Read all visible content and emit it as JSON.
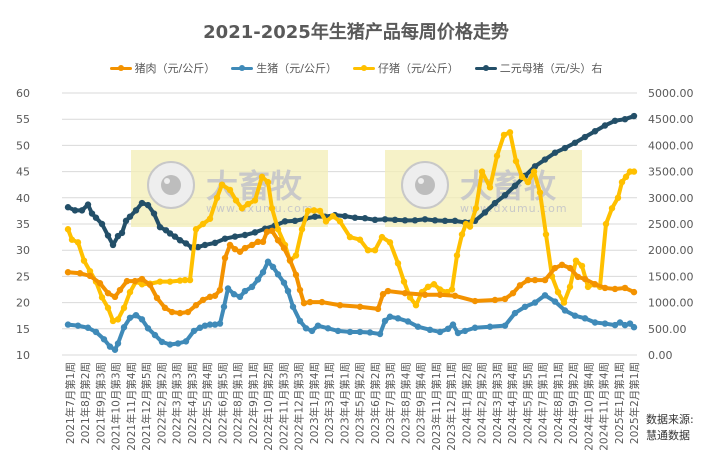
{
  "chart_data": {
    "type": "line",
    "title": "2021-2025年生猪产品每周价格走势",
    "xlabel": "",
    "ylabel": "",
    "ylim": [
      10,
      60
    ],
    "y2lim": [
      0,
      5000
    ],
    "y_ticks": [
      "10",
      "15",
      "20",
      "25",
      "30",
      "35",
      "40",
      "45",
      "50",
      "55",
      "60"
    ],
    "y2_ticks": [
      "0.00",
      "500.00",
      "1000.00",
      "1500.00",
      "2000.00",
      "2500.00",
      "3000.00",
      "3500.00",
      "4000.00",
      "4500.00",
      "5000.00"
    ],
    "grid": true,
    "legend_position": "top",
    "categories": [
      "2021年7月第1周",
      "2021年8月第2周",
      "2021年9月第3周",
      "2021年10月第3周",
      "2021年11月第4周",
      "2021年12月第5周",
      "2022年2月第2周",
      "2022年3月第3周",
      "2022年4月第3周",
      "2022年5月第4周",
      "2022年6月第5周",
      "2022年8月第1周",
      "2022年9月第1周",
      "2022年10月第2周",
      "2022年11月第3周",
      "2022年12月第3周",
      "2023年1月第4周",
      "2023年3月第1周",
      "2023年4月第1周",
      "2023年5月第2周",
      "2023年6月第2周",
      "2023年7月第3周",
      "2023年8月第4周",
      "2023年9月第4周",
      "2023年11月第1周",
      "2023年12月第1周",
      "2024年1月第2周",
      "2024年2月第2周",
      "2024年3月第3周",
      "2024年4月第4周",
      "2024年5月第5周",
      "2024年7月第1周",
      "2024年8月第1周",
      "2024年9月第2周",
      "2024年10月第4周",
      "2024年11月第4周",
      "2025年1月第1周",
      "2025年2月第1周"
    ],
    "series": [
      {
        "name": "猪肉（元/公斤）",
        "axis": "left",
        "color": "#F39200",
        "x": [
          68,
          80,
          90,
          100,
          108,
          115,
          120,
          127,
          135,
          142,
          150,
          157,
          165,
          172,
          180,
          188,
          196,
          203,
          210,
          215,
          220,
          225,
          230,
          235,
          240,
          245,
          252,
          258,
          263,
          267,
          272,
          278,
          284,
          290,
          296,
          300,
          304,
          310,
          322,
          340,
          360,
          378,
          383,
          388,
          405,
          425,
          440,
          455,
          475,
          495,
          505,
          513,
          520,
          528,
          535,
          545,
          555,
          562,
          570,
          578,
          585,
          595,
          605,
          615,
          625,
          634
        ],
        "values": [
          25.8,
          25.6,
          25.1,
          23.7,
          21.8,
          21.1,
          22.4,
          24.1,
          24.1,
          24.5,
          23.4,
          20.9,
          19.0,
          18.2,
          18.0,
          18.2,
          19.5,
          20.5,
          21.1,
          21.3,
          22.4,
          28.5,
          31.0,
          30.2,
          29.7,
          30.4,
          31.0,
          31.6,
          31.6,
          33.5,
          33.7,
          31.9,
          30.4,
          28.1,
          25.3,
          22.4,
          19.9,
          20.1,
          20.1,
          19.5,
          19.2,
          18.8,
          21.6,
          22.2,
          21.8,
          21.5,
          21.5,
          21.3,
          20.3,
          20.5,
          20.7,
          21.8,
          23.3,
          24.3,
          24.3,
          24.3,
          26.6,
          27.2,
          26.6,
          24.9,
          24.5,
          23.5,
          22.8,
          22.6,
          22.8,
          22.0
        ]
      },
      {
        "name": "生猪（元/公斤）",
        "axis": "left",
        "color": "#3F8AB8",
        "x": [
          68,
          78,
          88,
          96,
          104,
          110,
          115,
          118,
          124,
          130,
          136,
          142,
          148,
          155,
          162,
          170,
          178,
          186,
          194,
          200,
          205,
          210,
          215,
          220,
          224,
          228,
          234,
          240,
          245,
          252,
          258,
          263,
          268,
          273,
          278,
          284,
          288,
          293,
          300,
          306,
          312,
          318,
          328,
          338,
          350,
          360,
          370,
          380,
          385,
          390,
          398,
          408,
          418,
          430,
          440,
          448,
          453,
          458,
          465,
          475,
          490,
          505,
          515,
          525,
          535,
          545,
          555,
          565,
          575,
          585,
          595,
          605,
          615,
          620,
          625,
          630,
          634
        ],
        "values": [
          15.8,
          15.6,
          15.2,
          14.4,
          13.0,
          11.6,
          11.0,
          12.2,
          15.3,
          17.1,
          17.6,
          16.8,
          15.1,
          13.8,
          12.5,
          12.0,
          12.2,
          12.6,
          14.6,
          15.2,
          15.6,
          15.8,
          15.8,
          16.0,
          19.2,
          22.7,
          21.6,
          21.1,
          22.2,
          23.0,
          24.4,
          25.8,
          27.8,
          26.8,
          25.4,
          23.8,
          22.2,
          19.2,
          16.5,
          15.1,
          14.6,
          15.6,
          15.1,
          14.6,
          14.4,
          14.4,
          14.3,
          14.0,
          16.5,
          17.3,
          17.0,
          16.4,
          15.4,
          14.8,
          14.4,
          15.0,
          15.8,
          14.2,
          14.6,
          15.2,
          15.4,
          15.6,
          18.0,
          19.2,
          20.0,
          21.4,
          20.2,
          18.5,
          17.5,
          17.0,
          16.2,
          16.0,
          15.7,
          16.2,
          15.7,
          16.0,
          15.3
        ]
      },
      {
        "name": "仔猪（元/公斤）",
        "axis": "left",
        "color": "#FFC000",
        "x": [
          68,
          72,
          78,
          84,
          90,
          96,
          102,
          108,
          113,
          118,
          124,
          130,
          136,
          142,
          150,
          160,
          170,
          180,
          185,
          190,
          196,
          203,
          210,
          217,
          222,
          230,
          236,
          242,
          248,
          255,
          262,
          268,
          272,
          278,
          285,
          290,
          296,
          302,
          308,
          314,
          320,
          326,
          333,
          340,
          350,
          360,
          368,
          375,
          382,
          390,
          398,
          404,
          410,
          416,
          422,
          428,
          434,
          440,
          447,
          452,
          457,
          462,
          466,
          470,
          476,
          482,
          490,
          497,
          504,
          510,
          516,
          522,
          528,
          534,
          540,
          546,
          552,
          558,
          564,
          570,
          576,
          582,
          588,
          594,
          600,
          606,
          612,
          618,
          622,
          626,
          630,
          634
        ],
        "values": [
          34.0,
          32.0,
          31.5,
          28.0,
          26.0,
          24.0,
          21.0,
          19.0,
          16.5,
          16.8,
          19.0,
          22.0,
          24.0,
          23.5,
          23.6,
          24.0,
          24.0,
          24.2,
          24.3,
          24.3,
          34.0,
          35.0,
          36.0,
          40.0,
          42.5,
          41.5,
          39.5,
          38.0,
          38.8,
          39.5,
          44.0,
          43.0,
          38.0,
          34.0,
          31.0,
          28.0,
          29.0,
          34.0,
          37.5,
          37.6,
          37.5,
          35.5,
          36.5,
          35.5,
          32.5,
          32.0,
          30.0,
          30.0,
          32.5,
          31.5,
          27.5,
          24.0,
          21.0,
          19.5,
          22.0,
          23.0,
          23.5,
          22.5,
          22.0,
          22.5,
          29.0,
          33.0,
          35.0,
          34.5,
          38.0,
          45.0,
          42.0,
          48.0,
          52.0,
          52.5,
          47.0,
          44.0,
          43.0,
          45.0,
          41.0,
          33.0,
          25.0,
          22.0,
          20.0,
          23.0,
          28.0,
          27.0,
          23.0,
          23.5,
          23.0,
          35.0,
          38.0,
          40.0,
          43.0,
          44.0,
          45.0,
          45.0
        ]
      },
      {
        "name": "二元母猪（元/头）右",
        "axis": "right",
        "color": "#234F68",
        "x": [
          68,
          75,
          82,
          88,
          92,
          96,
          102,
          108,
          113,
          118,
          122,
          126,
          130,
          136,
          142,
          148,
          154,
          160,
          166,
          170,
          175,
          180,
          186,
          192,
          198,
          205,
          215,
          225,
          235,
          245,
          255,
          265,
          275,
          285,
          295,
          305,
          315,
          325,
          335,
          345,
          355,
          365,
          375,
          385,
          395,
          405,
          415,
          425,
          435,
          445,
          455,
          465,
          475,
          485,
          495,
          505,
          515,
          525,
          535,
          545,
          555,
          565,
          575,
          585,
          595,
          605,
          615,
          625,
          634
        ],
        "values": [
          2820,
          2760,
          2760,
          2870,
          2700,
          2620,
          2500,
          2280,
          2100,
          2270,
          2330,
          2560,
          2640,
          2760,
          2900,
          2860,
          2700,
          2440,
          2380,
          2320,
          2260,
          2190,
          2130,
          2050,
          2060,
          2100,
          2140,
          2220,
          2260,
          2290,
          2340,
          2410,
          2470,
          2550,
          2560,
          2600,
          2640,
          2640,
          2670,
          2650,
          2620,
          2610,
          2580,
          2590,
          2580,
          2570,
          2570,
          2590,
          2570,
          2560,
          2560,
          2530,
          2560,
          2720,
          2900,
          3050,
          3230,
          3420,
          3600,
          3730,
          3860,
          3950,
          4050,
          4160,
          4270,
          4380,
          4470,
          4500,
          4560
        ]
      }
    ]
  },
  "legend": [
    {
      "label": "猪肉（元/公斤）",
      "color": "#F39200"
    },
    {
      "label": "生猪（元/公斤）",
      "color": "#3F8AB8"
    },
    {
      "label": "仔猪（元/公斤）",
      "color": "#FFC000"
    },
    {
      "label": "二元母猪（元/头）右",
      "color": "#234F68"
    }
  ],
  "watermark": {
    "text": "大畜牧",
    "url": "www.dxumu.com"
  },
  "source": {
    "line1": "数据来源:",
    "line2": "慧通数据"
  }
}
